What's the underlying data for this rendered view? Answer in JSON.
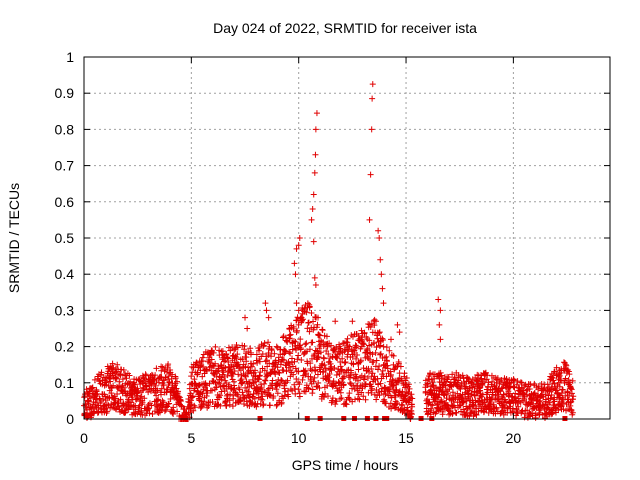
{
  "chart_data": {
    "type": "scatter",
    "title": "Day 024 of 2022, SRMTID for receiver ista",
    "xlabel": "GPS time / hours",
    "ylabel": "SRMTID / TECUs",
    "xlim": [
      0,
      24.5
    ],
    "ylim": [
      0,
      1
    ],
    "xticks": [
      "0",
      "5",
      "10",
      "15",
      "20"
    ],
    "yticks": [
      "0",
      "0.1",
      "0.2",
      "0.3",
      "0.4",
      "0.5",
      "0.6",
      "0.7",
      "0.8",
      "0.9",
      "1"
    ],
    "grid": true,
    "marker": "plus",
    "series_color": "#e00000",
    "baseline": [
      [
        0.0,
        0.04
      ],
      [
        0.5,
        0.06
      ],
      [
        1.0,
        0.08
      ],
      [
        1.5,
        0.09
      ],
      [
        2.0,
        0.07
      ],
      [
        2.5,
        0.06
      ],
      [
        3.0,
        0.07
      ],
      [
        3.5,
        0.08
      ],
      [
        4.0,
        0.09
      ],
      [
        4.3,
        0.06
      ],
      [
        4.6,
        0.01
      ],
      [
        4.8,
        0.0
      ],
      [
        5.0,
        0.08
      ],
      [
        5.5,
        0.1
      ],
      [
        6.0,
        0.12
      ],
      [
        6.5,
        0.11
      ],
      [
        7.0,
        0.12
      ],
      [
        7.5,
        0.12
      ],
      [
        8.0,
        0.11
      ],
      [
        8.5,
        0.13
      ],
      [
        9.0,
        0.12
      ],
      [
        9.5,
        0.15
      ],
      [
        10.0,
        0.18
      ],
      [
        10.5,
        0.2
      ],
      [
        11.0,
        0.16
      ],
      [
        11.5,
        0.12
      ],
      [
        12.0,
        0.12
      ],
      [
        12.5,
        0.14
      ],
      [
        13.0,
        0.15
      ],
      [
        13.5,
        0.17
      ],
      [
        14.0,
        0.12
      ],
      [
        14.5,
        0.1
      ],
      [
        15.0,
        0.07
      ],
      [
        15.5,
        0.0
      ],
      [
        16.0,
        0.07
      ],
      [
        16.5,
        0.07
      ],
      [
        17.0,
        0.07
      ],
      [
        17.5,
        0.07
      ],
      [
        18.0,
        0.06
      ],
      [
        18.5,
        0.07
      ],
      [
        19.0,
        0.07
      ],
      [
        19.5,
        0.06
      ],
      [
        20.0,
        0.06
      ],
      [
        20.5,
        0.05
      ],
      [
        21.0,
        0.05
      ],
      [
        21.5,
        0.05
      ],
      [
        22.0,
        0.08
      ],
      [
        22.4,
        0.09
      ],
      [
        22.8,
        0.06
      ]
    ],
    "highlights": [
      [
        9.8,
        0.43
      ],
      [
        9.9,
        0.47
      ],
      [
        10.0,
        0.48
      ],
      [
        10.05,
        0.5
      ],
      [
        9.85,
        0.4
      ],
      [
        9.9,
        0.32
      ],
      [
        10.0,
        0.3
      ],
      [
        10.6,
        0.55
      ],
      [
        10.65,
        0.58
      ],
      [
        10.7,
        0.62
      ],
      [
        10.75,
        0.68
      ],
      [
        10.78,
        0.73
      ],
      [
        10.8,
        0.8
      ],
      [
        10.85,
        0.845
      ],
      [
        10.7,
        0.49
      ],
      [
        10.75,
        0.39
      ],
      [
        10.8,
        0.37
      ],
      [
        10.9,
        0.28
      ],
      [
        13.3,
        0.55
      ],
      [
        13.35,
        0.675
      ],
      [
        13.4,
        0.8
      ],
      [
        13.42,
        0.885
      ],
      [
        13.45,
        0.925
      ],
      [
        13.7,
        0.52
      ],
      [
        13.75,
        0.5
      ],
      [
        13.8,
        0.44
      ],
      [
        13.85,
        0.4
      ],
      [
        13.9,
        0.36
      ],
      [
        13.95,
        0.32
      ],
      [
        13.6,
        0.27
      ],
      [
        13.5,
        0.21
      ],
      [
        16.5,
        0.33
      ],
      [
        16.6,
        0.3
      ],
      [
        16.55,
        0.26
      ],
      [
        16.6,
        0.22
      ],
      [
        8.45,
        0.32
      ],
      [
        8.5,
        0.3
      ],
      [
        8.6,
        0.28
      ],
      [
        7.5,
        0.28
      ],
      [
        7.6,
        0.25
      ],
      [
        11.7,
        0.27
      ],
      [
        12.5,
        0.27
      ],
      [
        14.6,
        0.26
      ],
      [
        14.7,
        0.24
      ],
      [
        14.3,
        0.22
      ]
    ],
    "zero_markers": [
      8.2,
      10.4,
      11.0,
      12.1,
      12.6,
      13.2,
      13.6,
      14.0,
      14.1,
      15.7,
      16.2,
      22.4
    ]
  }
}
